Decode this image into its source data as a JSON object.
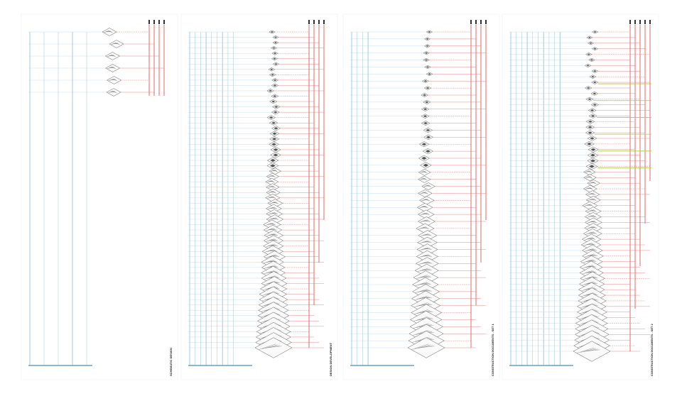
{
  "panels": [
    {
      "title": "SCHEMATIC DESIGN"
    },
    {
      "title": "DESIGN DEVELOPMENT"
    },
    {
      "title": "CONSTRUCTION DOCUMENTS - SET 1"
    },
    {
      "title": "CONSTRUCTION DOCUMENTS - SET 2"
    }
  ]
}
